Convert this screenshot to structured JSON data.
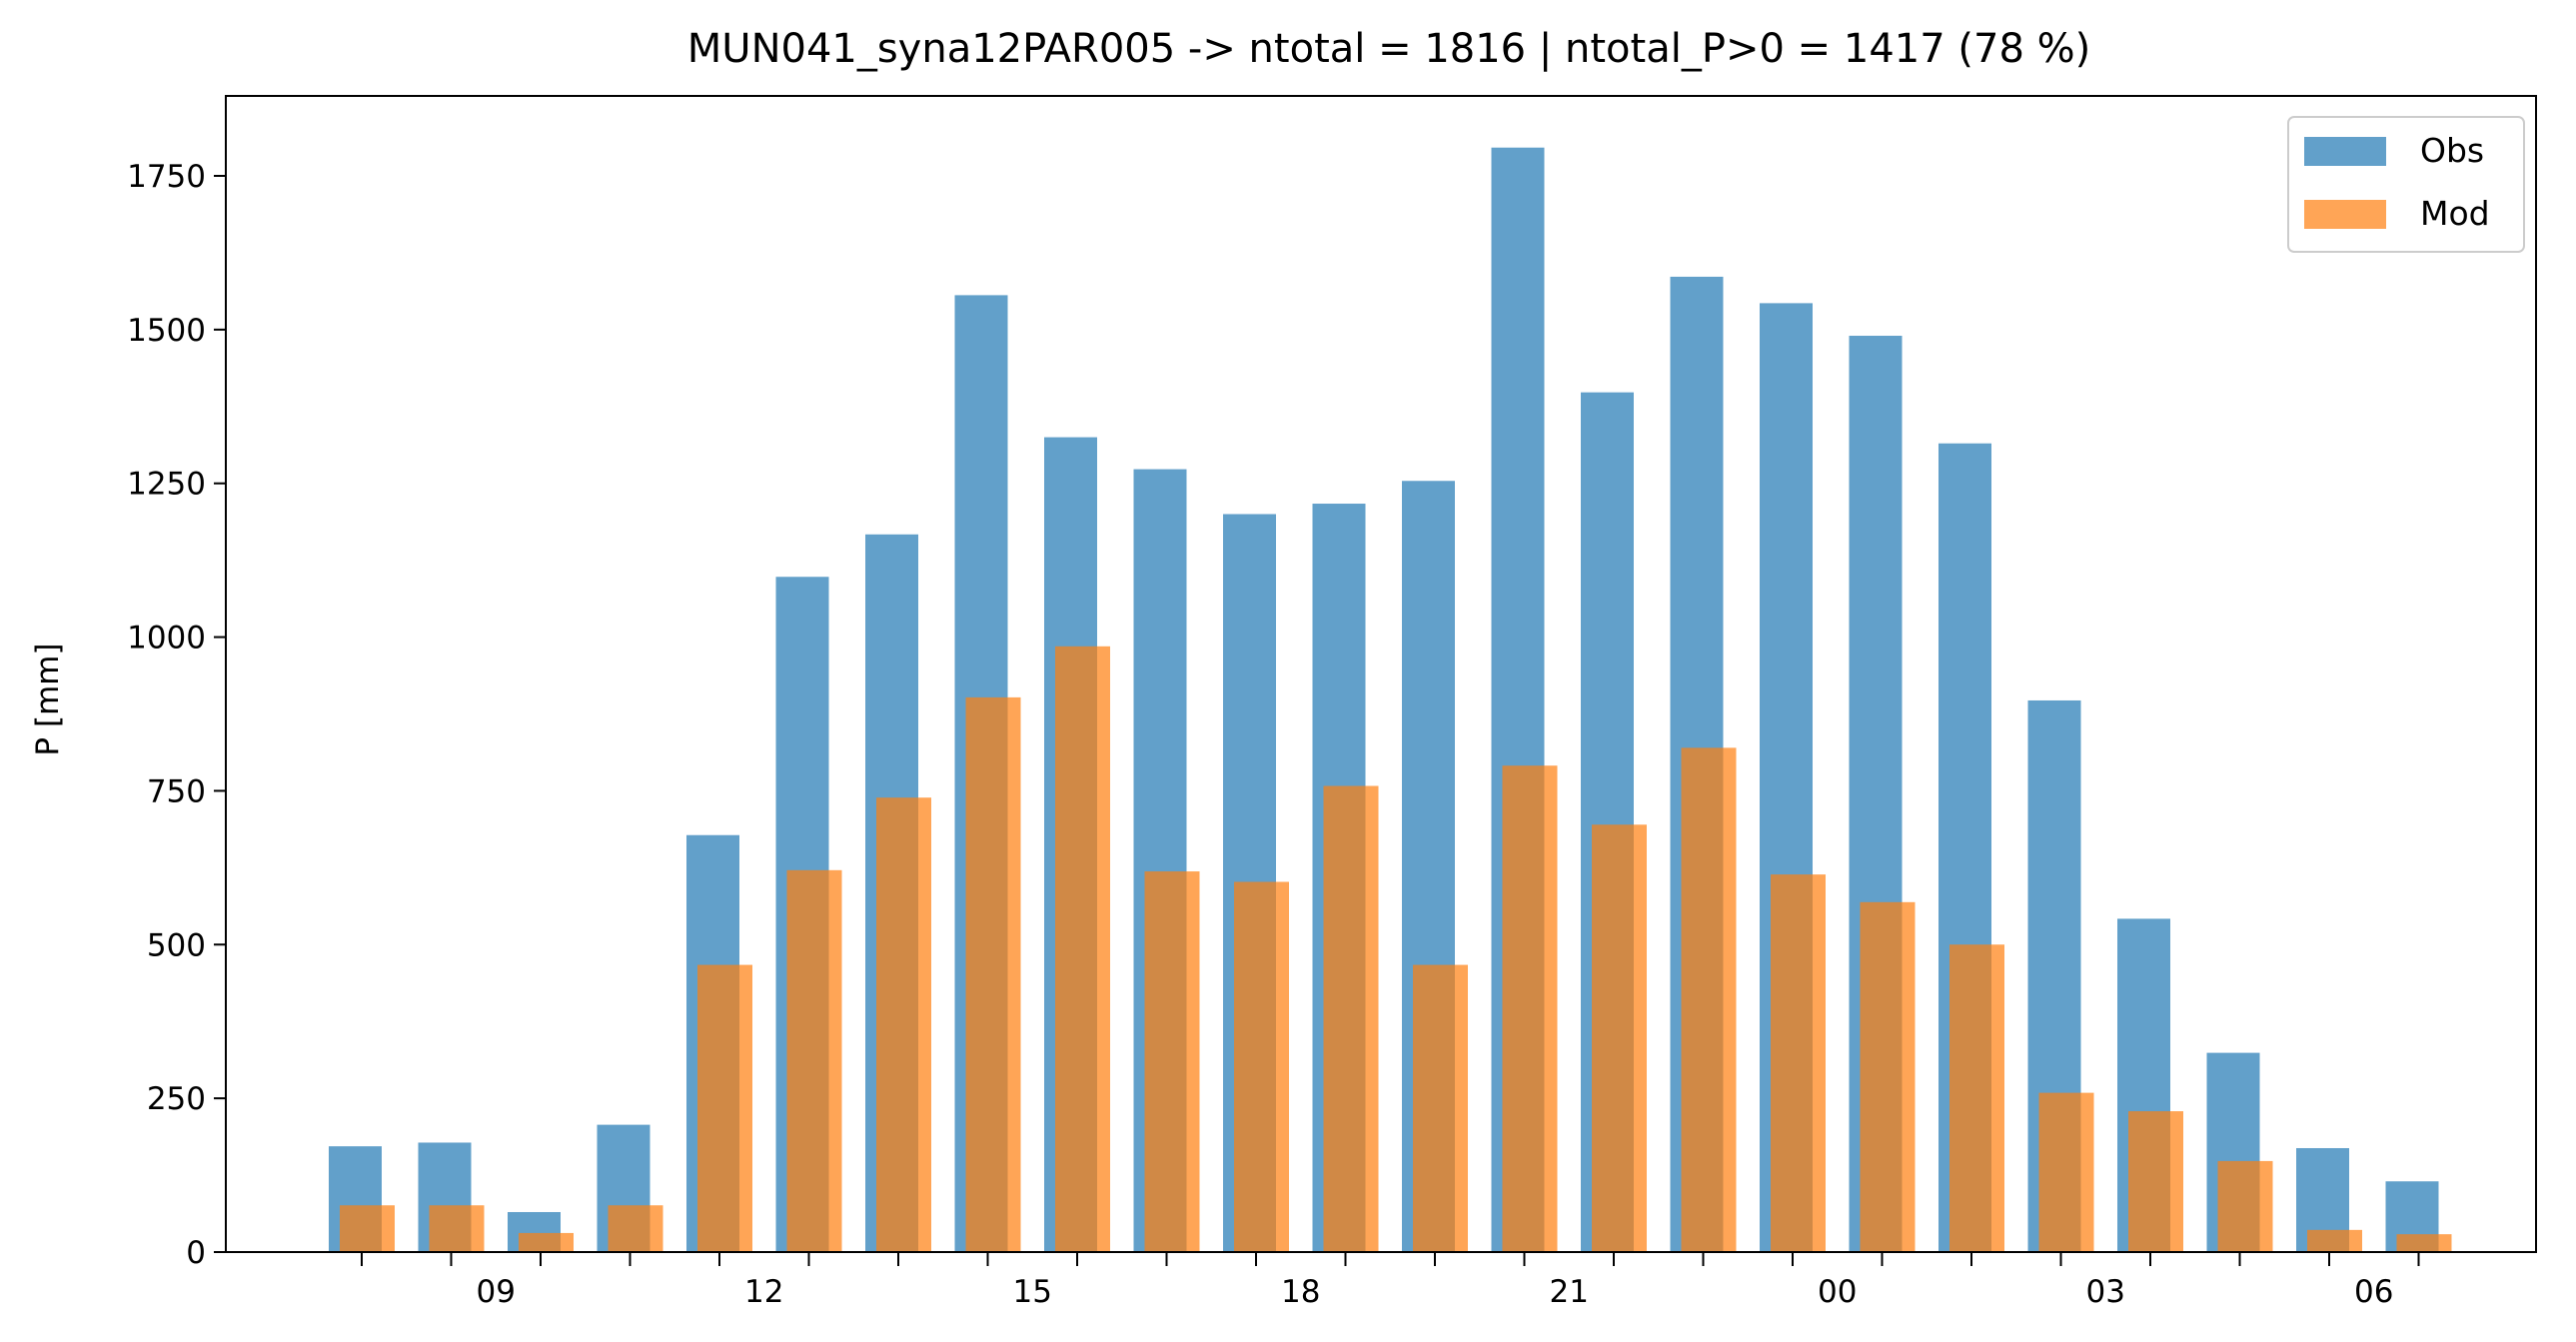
{
  "chart_data": {
    "type": "bar",
    "title": "MUN041_syna12PAR005 -> ntotal = 1816 | ntotal_P>0 = 1417 (78 %)",
    "xlabel": "",
    "ylabel": "P [mm]",
    "ylim": [
      0,
      1880
    ],
    "yticks": [
      0,
      250,
      500,
      750,
      1000,
      1250,
      1500,
      1750
    ],
    "x_hours": [
      8,
      9,
      10,
      11,
      12,
      13,
      14,
      15,
      16,
      17,
      18,
      19,
      20,
      21,
      22,
      23,
      0,
      1,
      2,
      3,
      4,
      5,
      6,
      7
    ],
    "xtick_labels": [
      "09",
      "12",
      "15",
      "18",
      "21",
      "00",
      "03",
      "06"
    ],
    "xtick_label_indices": [
      1,
      4,
      7,
      10,
      13,
      16,
      19,
      22
    ],
    "legend_position": "upper right",
    "series": [
      {
        "name": "Obs",
        "color": "#1f77b4",
        "values": [
          172,
          178,
          65,
          207,
          678,
          1098,
          1167,
          1556,
          1325,
          1273,
          1200,
          1217,
          1254,
          1796,
          1398,
          1586,
          1543,
          1490,
          1315,
          897,
          542,
          324,
          169,
          115
        ]
      },
      {
        "name": "Mod",
        "color": "#ff7f0e",
        "values": [
          76,
          76,
          31,
          76,
          467,
          621,
          739,
          902,
          985,
          619,
          602,
          758,
          467,
          791,
          695,
          820,
          614,
          569,
          500,
          259,
          229,
          148,
          36,
          29
        ]
      }
    ]
  }
}
